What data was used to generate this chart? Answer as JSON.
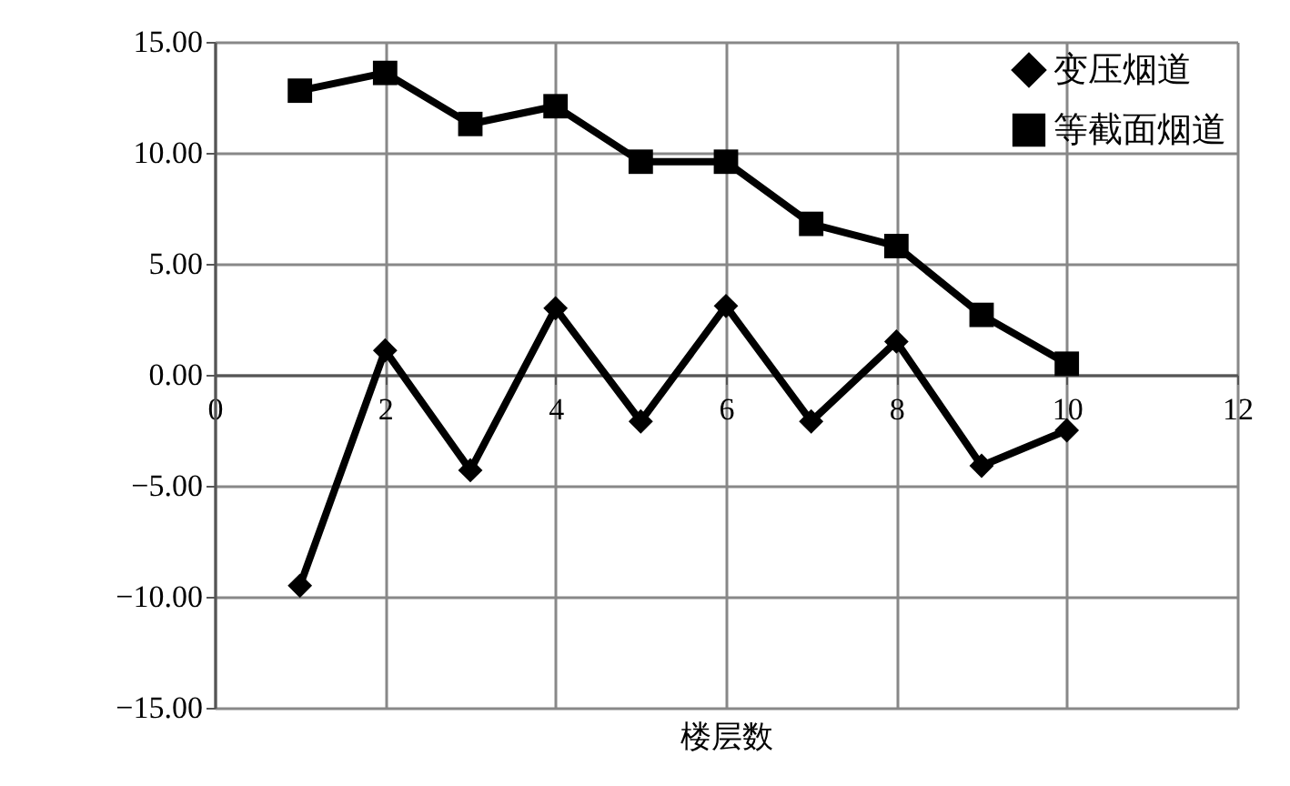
{
  "chart_data": {
    "type": "line",
    "xlabel": "楼层数",
    "x": [
      1,
      2,
      3,
      4,
      5,
      6,
      7,
      8,
      9,
      10
    ],
    "series": [
      {
        "name": "变压烟道",
        "color": "#000000",
        "marker": "diamond",
        "values": [
          -9.5,
          1.1,
          -4.3,
          3.0,
          -2.1,
          3.1,
          -2.1,
          1.5,
          -4.1,
          -2.5
        ]
      },
      {
        "name": "等截面烟道",
        "color": "#000000",
        "marker": "square",
        "values": [
          12.8,
          13.6,
          11.3,
          12.1,
          9.6,
          9.6,
          6.8,
          5.8,
          2.7,
          0.5
        ]
      }
    ],
    "xlim": [
      0,
      12
    ],
    "xticks": [
      0,
      2,
      4,
      6,
      8,
      10,
      12
    ],
    "ylim": [
      -15,
      15
    ],
    "yticks": [
      {
        "value": 15,
        "label": "15.00"
      },
      {
        "value": 10,
        "label": "10.00"
      },
      {
        "value": 5,
        "label": "5.00"
      },
      {
        "value": 0,
        "label": "0.00"
      },
      {
        "value": -5,
        "label": "−5.00"
      },
      {
        "value": -10,
        "label": "−10.00"
      },
      {
        "value": -15,
        "label": "−15.00"
      }
    ],
    "grid": true,
    "legend": "top right",
    "line_style": "solid"
  }
}
